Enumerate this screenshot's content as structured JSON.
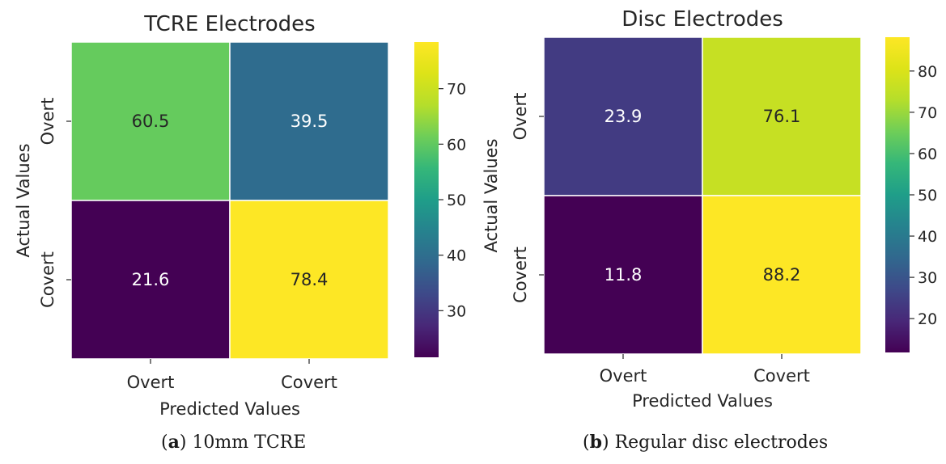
{
  "chart_data": [
    {
      "type": "heatmap",
      "title": "TCRE Electrodes",
      "xlabel": "Predicted Values",
      "ylabel": "Actual Values",
      "x_categories": [
        "Overt",
        "Covert"
      ],
      "y_categories": [
        "Overt",
        "Covert"
      ],
      "values": [
        [
          60.5,
          39.5
        ],
        [
          21.6,
          78.4
        ]
      ],
      "colorscale": "viridis",
      "colorbar": {
        "min": 21.6,
        "max": 78.4,
        "ticks": [
          30,
          40,
          50,
          60,
          70
        ]
      },
      "caption": {
        "letter": "a",
        "text": "10mm TCRE"
      }
    },
    {
      "type": "heatmap",
      "title": "Disc Electrodes",
      "xlabel": "Predicted Values",
      "ylabel": "Actual Values",
      "x_categories": [
        "Overt",
        "Covert"
      ],
      "y_categories": [
        "Overt",
        "Covert"
      ],
      "values": [
        [
          23.9,
          76.1
        ],
        [
          11.8,
          88.2
        ]
      ],
      "colorscale": "viridis",
      "colorbar": {
        "min": 11.8,
        "max": 88.2,
        "ticks": [
          20,
          30,
          40,
          50,
          60,
          70,
          80
        ]
      },
      "caption": {
        "letter": "b",
        "text": "Regular disc electrodes"
      }
    }
  ]
}
